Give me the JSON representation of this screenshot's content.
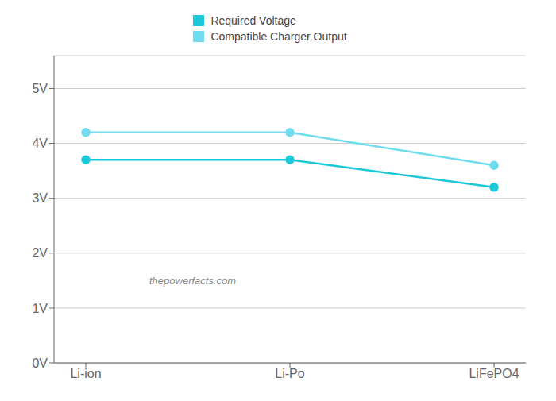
{
  "chart_data": {
    "type": "line",
    "categories": [
      "Li-ion",
      "Li-Po",
      "LiFePO4"
    ],
    "series": [
      {
        "name": "Required Voltage",
        "color": "#1DC8D8",
        "values": [
          3.7,
          3.7,
          3.2
        ],
        "marker": "circle"
      },
      {
        "name": "Compatible Charger Output",
        "color": "#70DCEF",
        "values": [
          4.2,
          4.2,
          3.6
        ],
        "marker": "circle"
      }
    ],
    "ylim": [
      0,
      5.6
    ],
    "yticks": [
      {
        "value": 0,
        "label": "0V"
      },
      {
        "value": 1,
        "label": "1V"
      },
      {
        "value": 2,
        "label": "2V"
      },
      {
        "value": 3,
        "label": "3V"
      },
      {
        "value": 4,
        "label": "4V"
      },
      {
        "value": 5,
        "label": "5V"
      }
    ],
    "grid": true,
    "legend": "top",
    "annotations": [
      {
        "text": "thepowerfacts.com",
        "y": 1.5
      }
    ]
  }
}
